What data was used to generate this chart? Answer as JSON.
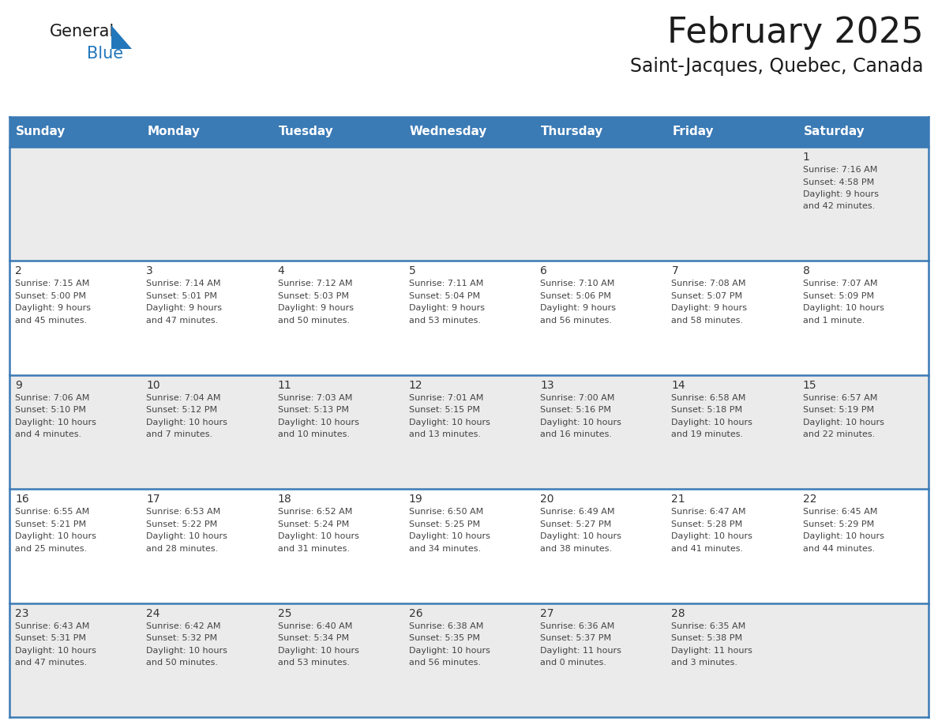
{
  "title": "February 2025",
  "subtitle": "Saint-Jacques, Quebec, Canada",
  "header_bg": "#3a7ab5",
  "header_text": "#ffffff",
  "day_names": [
    "Sunday",
    "Monday",
    "Tuesday",
    "Wednesday",
    "Thursday",
    "Friday",
    "Saturday"
  ],
  "row_bg_light": "#ebebeb",
  "row_bg_white": "#ffffff",
  "cell_text_color": "#444444",
  "day_num_color": "#333333",
  "border_color": "#3a7ab5",
  "logo_color_general": "#1a1a1a",
  "logo_color_blue": "#2277bb",
  "logo_triangle_color": "#2277bb",
  "days": [
    {
      "day": 1,
      "col": 6,
      "row": 0,
      "sunrise": "7:16 AM",
      "sunset": "4:58 PM",
      "daylight": "9 hours and 42 minutes."
    },
    {
      "day": 2,
      "col": 0,
      "row": 1,
      "sunrise": "7:15 AM",
      "sunset": "5:00 PM",
      "daylight": "9 hours and 45 minutes."
    },
    {
      "day": 3,
      "col": 1,
      "row": 1,
      "sunrise": "7:14 AM",
      "sunset": "5:01 PM",
      "daylight": "9 hours and 47 minutes."
    },
    {
      "day": 4,
      "col": 2,
      "row": 1,
      "sunrise": "7:12 AM",
      "sunset": "5:03 PM",
      "daylight": "9 hours and 50 minutes."
    },
    {
      "day": 5,
      "col": 3,
      "row": 1,
      "sunrise": "7:11 AM",
      "sunset": "5:04 PM",
      "daylight": "9 hours and 53 minutes."
    },
    {
      "day": 6,
      "col": 4,
      "row": 1,
      "sunrise": "7:10 AM",
      "sunset": "5:06 PM",
      "daylight": "9 hours and 56 minutes."
    },
    {
      "day": 7,
      "col": 5,
      "row": 1,
      "sunrise": "7:08 AM",
      "sunset": "5:07 PM",
      "daylight": "9 hours and 58 minutes."
    },
    {
      "day": 8,
      "col": 6,
      "row": 1,
      "sunrise": "7:07 AM",
      "sunset": "5:09 PM",
      "daylight": "10 hours and 1 minute."
    },
    {
      "day": 9,
      "col": 0,
      "row": 2,
      "sunrise": "7:06 AM",
      "sunset": "5:10 PM",
      "daylight": "10 hours and 4 minutes."
    },
    {
      "day": 10,
      "col": 1,
      "row": 2,
      "sunrise": "7:04 AM",
      "sunset": "5:12 PM",
      "daylight": "10 hours and 7 minutes."
    },
    {
      "day": 11,
      "col": 2,
      "row": 2,
      "sunrise": "7:03 AM",
      "sunset": "5:13 PM",
      "daylight": "10 hours and 10 minutes."
    },
    {
      "day": 12,
      "col": 3,
      "row": 2,
      "sunrise": "7:01 AM",
      "sunset": "5:15 PM",
      "daylight": "10 hours and 13 minutes."
    },
    {
      "day": 13,
      "col": 4,
      "row": 2,
      "sunrise": "7:00 AM",
      "sunset": "5:16 PM",
      "daylight": "10 hours and 16 minutes."
    },
    {
      "day": 14,
      "col": 5,
      "row": 2,
      "sunrise": "6:58 AM",
      "sunset": "5:18 PM",
      "daylight": "10 hours and 19 minutes."
    },
    {
      "day": 15,
      "col": 6,
      "row": 2,
      "sunrise": "6:57 AM",
      "sunset": "5:19 PM",
      "daylight": "10 hours and 22 minutes."
    },
    {
      "day": 16,
      "col": 0,
      "row": 3,
      "sunrise": "6:55 AM",
      "sunset": "5:21 PM",
      "daylight": "10 hours and 25 minutes."
    },
    {
      "day": 17,
      "col": 1,
      "row": 3,
      "sunrise": "6:53 AM",
      "sunset": "5:22 PM",
      "daylight": "10 hours and 28 minutes."
    },
    {
      "day": 18,
      "col": 2,
      "row": 3,
      "sunrise": "6:52 AM",
      "sunset": "5:24 PM",
      "daylight": "10 hours and 31 minutes."
    },
    {
      "day": 19,
      "col": 3,
      "row": 3,
      "sunrise": "6:50 AM",
      "sunset": "5:25 PM",
      "daylight": "10 hours and 34 minutes."
    },
    {
      "day": 20,
      "col": 4,
      "row": 3,
      "sunrise": "6:49 AM",
      "sunset": "5:27 PM",
      "daylight": "10 hours and 38 minutes."
    },
    {
      "day": 21,
      "col": 5,
      "row": 3,
      "sunrise": "6:47 AM",
      "sunset": "5:28 PM",
      "daylight": "10 hours and 41 minutes."
    },
    {
      "day": 22,
      "col": 6,
      "row": 3,
      "sunrise": "6:45 AM",
      "sunset": "5:29 PM",
      "daylight": "10 hours and 44 minutes."
    },
    {
      "day": 23,
      "col": 0,
      "row": 4,
      "sunrise": "6:43 AM",
      "sunset": "5:31 PM",
      "daylight": "10 hours and 47 minutes."
    },
    {
      "day": 24,
      "col": 1,
      "row": 4,
      "sunrise": "6:42 AM",
      "sunset": "5:32 PM",
      "daylight": "10 hours and 50 minutes."
    },
    {
      "day": 25,
      "col": 2,
      "row": 4,
      "sunrise": "6:40 AM",
      "sunset": "5:34 PM",
      "daylight": "10 hours and 53 minutes."
    },
    {
      "day": 26,
      "col": 3,
      "row": 4,
      "sunrise": "6:38 AM",
      "sunset": "5:35 PM",
      "daylight": "10 hours and 56 minutes."
    },
    {
      "day": 27,
      "col": 4,
      "row": 4,
      "sunrise": "6:36 AM",
      "sunset": "5:37 PM",
      "daylight": "11 hours and 0 minutes."
    },
    {
      "day": 28,
      "col": 5,
      "row": 4,
      "sunrise": "6:35 AM",
      "sunset": "5:38 PM",
      "daylight": "11 hours and 3 minutes."
    }
  ]
}
